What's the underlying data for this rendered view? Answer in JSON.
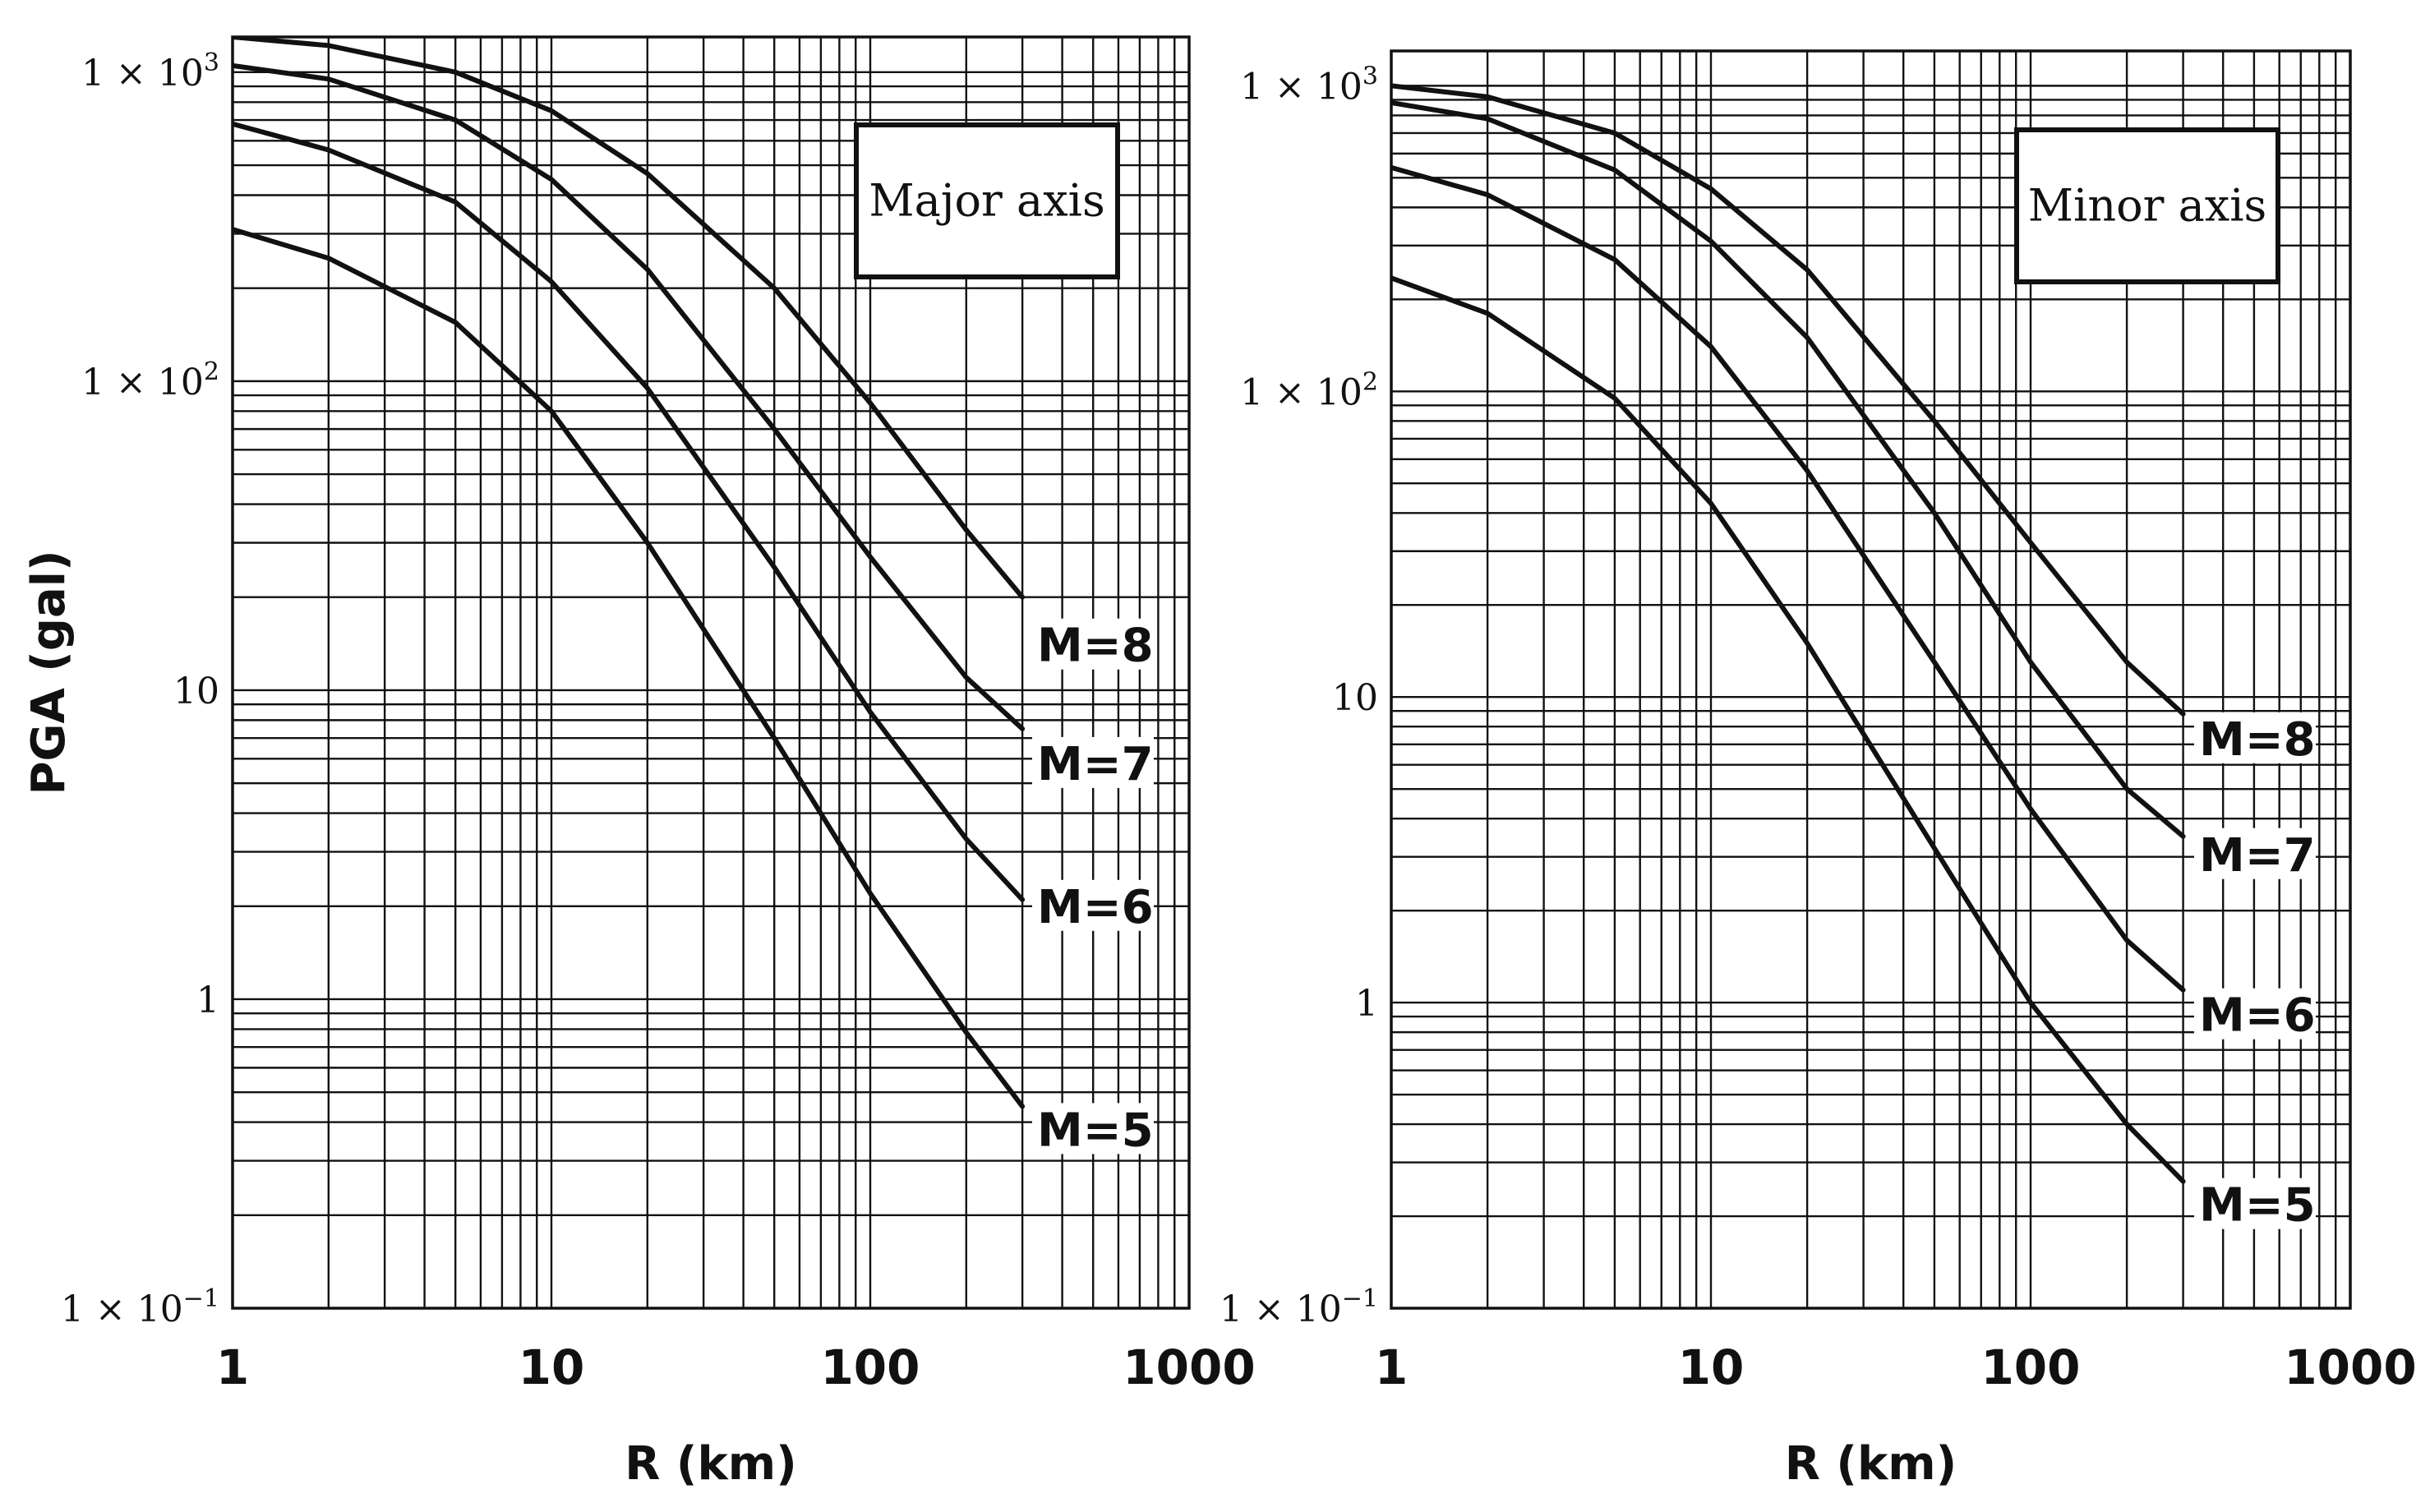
{
  "chart_data": [
    {
      "type": "line",
      "x_scale": "log",
      "y_scale": "log",
      "xlim": [
        1,
        1000
      ],
      "ylim": [
        0.1,
        1300
      ],
      "xlabel": "R (km)",
      "ylabel": "PGA (gal)",
      "x_ticks": [
        {
          "value": 1,
          "label": "1"
        },
        {
          "value": 10,
          "label": "10"
        },
        {
          "value": 100,
          "label": "100"
        },
        {
          "value": 1000,
          "label": "1000"
        }
      ],
      "y_ticks": [
        {
          "value": 1000,
          "base": "1 × 10",
          "exp": "3"
        },
        {
          "value": 100,
          "base": "1 × 10",
          "exp": "2"
        },
        {
          "value": 10,
          "base": "10",
          "exp": ""
        },
        {
          "value": 1,
          "base": "1",
          "exp": ""
        },
        {
          "value": 0.1,
          "base": "1 × 10",
          "exp": "−1"
        }
      ],
      "annotation_box": "Major axis",
      "series": [
        {
          "name": "M=8",
          "x": [
            1,
            2,
            5,
            10,
            20,
            50,
            100,
            200,
            300
          ],
          "y": [
            1300,
            1220,
            1000,
            750,
            470,
            200,
            85,
            33,
            20
          ]
        },
        {
          "name": "M=7",
          "x": [
            1,
            2,
            5,
            10,
            20,
            50,
            100,
            200,
            300
          ],
          "y": [
            1050,
            950,
            700,
            450,
            230,
            70,
            27,
            11,
            7.5
          ]
        },
        {
          "name": "M=6",
          "x": [
            1,
            2,
            5,
            10,
            20,
            50,
            100,
            200,
            300
          ],
          "y": [
            680,
            560,
            380,
            210,
            95,
            25,
            8.5,
            3.3,
            2.1
          ]
        },
        {
          "name": "M=5",
          "x": [
            1,
            2,
            5,
            10,
            20,
            50,
            100,
            200,
            300
          ],
          "y": [
            310,
            250,
            155,
            80,
            30,
            7,
            2.2,
            0.78,
            0.45
          ]
        }
      ]
    },
    {
      "type": "line",
      "x_scale": "log",
      "y_scale": "log",
      "xlim": [
        1,
        1000
      ],
      "ylim": [
        0.1,
        1300
      ],
      "xlabel": "R (km)",
      "ylabel": "",
      "x_ticks": [
        {
          "value": 1,
          "label": "1"
        },
        {
          "value": 10,
          "label": "10"
        },
        {
          "value": 100,
          "label": "100"
        },
        {
          "value": 1000,
          "label": "1000"
        }
      ],
      "y_ticks": [
        {
          "value": 1000,
          "base": "1 × 10",
          "exp": "3"
        },
        {
          "value": 100,
          "base": "1 × 10",
          "exp": "2"
        },
        {
          "value": 10,
          "base": "10",
          "exp": ""
        },
        {
          "value": 1,
          "base": "1",
          "exp": ""
        },
        {
          "value": 0.1,
          "base": "1 × 10",
          "exp": "−1"
        }
      ],
      "annotation_box": "Minor axis",
      "series": [
        {
          "name": "M=8",
          "x": [
            1,
            2,
            5,
            10,
            20,
            50,
            100,
            200,
            300
          ],
          "y": [
            1000,
            920,
            700,
            460,
            250,
            80,
            32,
            13,
            8.8
          ]
        },
        {
          "name": "M=7",
          "x": [
            1,
            2,
            5,
            10,
            20,
            50,
            100,
            200,
            300
          ],
          "y": [
            880,
            780,
            530,
            310,
            150,
            40,
            13,
            5,
            3.5
          ]
        },
        {
          "name": "M=6",
          "x": [
            1,
            2,
            5,
            10,
            20,
            50,
            100,
            200,
            300
          ],
          "y": [
            540,
            440,
            270,
            140,
            55,
            13,
            4.3,
            1.6,
            1.1
          ]
        },
        {
          "name": "M=5",
          "x": [
            1,
            2,
            5,
            10,
            20,
            50,
            100,
            200,
            300
          ],
          "y": [
            235,
            180,
            95,
            43,
            15,
            3.2,
            1,
            0.4,
            0.26
          ]
        }
      ]
    }
  ]
}
